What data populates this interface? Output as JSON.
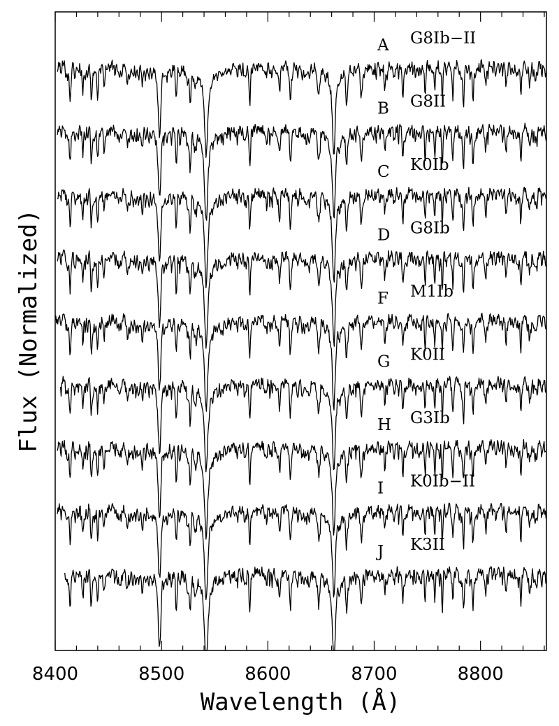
{
  "chart_data": {
    "type": "line",
    "title": "",
    "xlabel": "Wavelength (Å)",
    "ylabel": "Flux (Normalized)",
    "xlim": [
      8400,
      8862
    ],
    "x_ticks": [
      8400,
      8500,
      8600,
      8700,
      8800
    ],
    "x_minor_step": 20,
    "y_ticks_shown": false,
    "grid": false,
    "absorption_lines_angstrom": [
      8498,
      8542,
      8662
    ],
    "series": [
      {
        "letter": "A",
        "spectral_type": "G8Ib−II",
        "start": 8402,
        "offset": 0.0
      },
      {
        "letter": "B",
        "spectral_type": "G8II",
        "start": 8402,
        "offset": 1.0
      },
      {
        "letter": "C",
        "spectral_type": "K0Ib",
        "start": 8402,
        "offset": 2.0
      },
      {
        "letter": "D",
        "spectral_type": "G8Ib",
        "start": 8402,
        "offset": 3.0
      },
      {
        "letter": "F",
        "spectral_type": "M1Ib",
        "start": 8400,
        "offset": 4.0
      },
      {
        "letter": "G",
        "spectral_type": "K0II",
        "start": 8405,
        "offset": 5.0
      },
      {
        "letter": "H",
        "spectral_type": "G3Ib",
        "start": 8402,
        "offset": 6.0
      },
      {
        "letter": "I",
        "spectral_type": "K0Ib−II",
        "start": 8402,
        "offset": 7.0
      },
      {
        "letter": "J",
        "spectral_type": "K3II",
        "start": 8409,
        "offset": 8.0
      }
    ]
  }
}
